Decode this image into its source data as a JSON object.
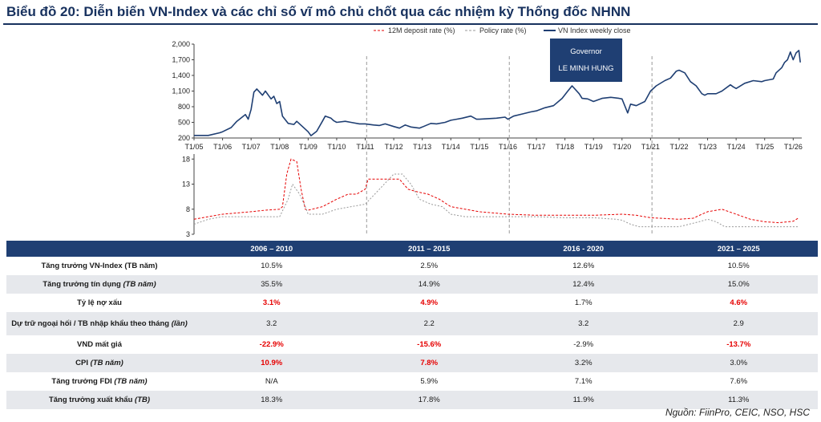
{
  "title": "Biểu đồ 20: Diễn biến VN-Index và các chỉ số vĩ mô chủ chốt qua các nhiệm kỳ Thống đốc NHNN",
  "governor": {
    "line1": "Governor",
    "line2": "LE MINH HUNG"
  },
  "legend": {
    "deposit": "12M deposit rate (%)",
    "policy": "Policy rate (%)",
    "vnindex": "VN Index weekly close"
  },
  "colors": {
    "vnindex": "#1f3f73",
    "deposit": "#e60000",
    "policy": "#999999",
    "header": "#1f3f73",
    "title": "#17315e"
  },
  "chart_data": [
    {
      "type": "line",
      "series": [
        {
          "name": "VN Index weekly close",
          "x": [
            2005.0,
            2005.5,
            2005.9,
            2006.0,
            2006.3,
            2006.5,
            2006.8,
            2006.9,
            2007.0,
            2007.1,
            2007.2,
            2007.4,
            2007.5,
            2007.7,
            2007.8,
            2007.9,
            2008.0,
            2008.1,
            2008.3,
            2008.5,
            2008.6,
            2008.8,
            2009.0,
            2009.1,
            2009.3,
            2009.5,
            2009.6,
            2009.8,
            2009.9,
            2010.0,
            2010.3,
            2010.5,
            2010.8,
            2011.0,
            2011.3,
            2011.5,
            2011.7,
            2012.0,
            2012.2,
            2012.4,
            2012.6,
            2012.9,
            2013.0,
            2013.3,
            2013.5,
            2013.8,
            2014.0,
            2014.2,
            2014.4,
            2014.7,
            2014.9,
            2015.0,
            2015.3,
            2015.6,
            2015.9,
            2016.0,
            2016.2,
            2016.5,
            2016.8,
            2017.0,
            2017.3,
            2017.6,
            2017.9,
            2018.1,
            2018.25,
            2018.5,
            2018.6,
            2018.8,
            2019.0,
            2019.3,
            2019.6,
            2019.9,
            2020.0,
            2020.2,
            2020.3,
            2020.5,
            2020.8,
            2021.0,
            2021.2,
            2021.5,
            2021.7,
            2021.9,
            2022.0,
            2022.2,
            2022.4,
            2022.6,
            2022.8,
            2022.9,
            2023.0,
            2023.3,
            2023.5,
            2023.8,
            2023.9,
            2024.0,
            2024.3,
            2024.6,
            2024.9,
            2025.0,
            2025.3,
            2025.4,
            2025.6,
            2025.7,
            2025.8,
            2025.9,
            2026.0,
            2026.1,
            2026.2,
            2026.25
          ],
          "values": [
            250,
            250,
            300,
            320,
            400,
            520,
            650,
            560,
            750,
            1080,
            1140,
            1020,
            1100,
            950,
            1000,
            860,
            900,
            620,
            480,
            460,
            520,
            420,
            320,
            245,
            330,
            520,
            620,
            580,
            530,
            500,
            520,
            500,
            470,
            470,
            450,
            440,
            470,
            420,
            390,
            450,
            410,
            390,
            410,
            480,
            470,
            500,
            540,
            560,
            580,
            620,
            560,
            560,
            570,
            580,
            600,
            560,
            620,
            660,
            700,
            720,
            780,
            820,
            960,
            1100,
            1200,
            1050,
            960,
            950,
            900,
            960,
            980,
            960,
            950,
            680,
            850,
            820,
            900,
            1100,
            1200,
            1300,
            1350,
            1480,
            1500,
            1450,
            1280,
            1200,
            1050,
            1020,
            1050,
            1050,
            1100,
            1220,
            1180,
            1150,
            1250,
            1300,
            1280,
            1300,
            1330,
            1450,
            1550,
            1650,
            1700,
            1850,
            1700,
            1830,
            1880,
            1650
          ]
        }
      ],
      "xlabels": [
        "T1/05",
        "T1/06",
        "T1/07",
        "T1/08",
        "T1/09",
        "T1/10",
        "T1/11",
        "T1/12",
        "T1/13",
        "T1/14",
        "T1/15",
        "T1/16",
        "T1/17",
        "T1/18",
        "T1/19",
        "T1/20",
        "T1/21",
        "T1/22",
        "T1/23",
        "T1/24",
        "T1/25",
        "T1/26"
      ],
      "yticks": [
        200,
        500,
        800,
        1100,
        1400,
        1700,
        2000
      ],
      "ylim": [
        200,
        2000
      ],
      "xlim": [
        2005,
        2026.3
      ],
      "dividers": [
        2011.05,
        2016.05,
        2021.05
      ]
    },
    {
      "type": "line",
      "series": [
        {
          "name": "12M deposit rate (%)",
          "x": [
            2005.0,
            2005.5,
            2006.0,
            2007.0,
            2007.5,
            2008.0,
            2008.1,
            2008.25,
            2008.4,
            2008.6,
            2008.75,
            2008.9,
            2009.0,
            2009.5,
            2010.0,
            2010.4,
            2010.7,
            2011.0,
            2011.1,
            2011.5,
            2012.0,
            2012.2,
            2012.5,
            2012.8,
            2013.2,
            2013.6,
            2014.0,
            2014.5,
            2015.0,
            2016.0,
            2017.0,
            2018.0,
            2019.0,
            2020.0,
            2020.5,
            2021.0,
            2022.0,
            2022.5,
            2022.8,
            2023.0,
            2023.5,
            2024.0,
            2024.5,
            2025.0,
            2025.5,
            2026.0,
            2026.2
          ],
          "values": [
            6.0,
            6.5,
            7.0,
            7.5,
            7.8,
            8.0,
            8.5,
            15.0,
            18.0,
            17.5,
            12.0,
            8.0,
            7.8,
            8.5,
            10.0,
            11.0,
            11.0,
            12.0,
            14.0,
            14.0,
            14.0,
            14.0,
            12.0,
            11.5,
            11.0,
            10.0,
            8.5,
            8.0,
            7.5,
            7.0,
            6.8,
            6.8,
            6.8,
            7.0,
            6.8,
            6.3,
            6.0,
            6.2,
            7.0,
            7.5,
            8.0,
            7.0,
            6.0,
            5.5,
            5.3,
            5.6,
            6.3
          ]
        },
        {
          "name": "Policy rate (%)",
          "x": [
            2005.0,
            2005.5,
            2006.0,
            2007.0,
            2008.0,
            2008.3,
            2008.45,
            2008.7,
            2008.9,
            2009.0,
            2009.5,
            2010.0,
            2011.0,
            2011.5,
            2012.0,
            2012.3,
            2012.6,
            2012.9,
            2013.3,
            2013.7,
            2014.0,
            2014.5,
            2015.0,
            2016.0,
            2017.0,
            2018.0,
            2019.0,
            2019.8,
            2020.0,
            2020.3,
            2020.6,
            2021.0,
            2022.0,
            2022.7,
            2023.0,
            2023.3,
            2023.6,
            2024.0,
            2025.0,
            2026.0,
            2026.2
          ],
          "values": [
            5.0,
            6.0,
            6.5,
            6.5,
            6.5,
            10.0,
            13.0,
            11.0,
            8.5,
            7.0,
            7.0,
            8.0,
            9.0,
            12.0,
            15.0,
            15.0,
            13.0,
            10.0,
            9.0,
            8.5,
            7.0,
            6.5,
            6.5,
            6.5,
            6.5,
            6.3,
            6.3,
            6.0,
            5.8,
            5.0,
            4.5,
            4.5,
            4.5,
            5.5,
            6.0,
            5.5,
            4.5,
            4.5,
            4.5,
            4.5,
            4.5
          ]
        }
      ],
      "yticks": [
        3,
        8,
        13,
        18
      ],
      "ylim": [
        3,
        19
      ],
      "xlim": [
        2005,
        2026.3
      ]
    },
    {
      "type": "table",
      "headers": [
        "",
        "2006 – 2010",
        "2011 – 2015",
        "2016 - 2020",
        "2021 – 2025"
      ],
      "rows": [
        {
          "label": "Tăng trưởng VN-Index (TB năm)",
          "label_main": "Tăng trưởng VN-Index (TB năm)",
          "label_em": "",
          "values": [
            "10.5%",
            "2.5%",
            "12.6%",
            "10.5%"
          ],
          "red": [
            false,
            false,
            false,
            false
          ]
        },
        {
          "label": "Tăng trưởng tín dụng (TB năm)",
          "label_main": "Tăng trưởng tín dụng ",
          "label_em": "(TB năm)",
          "values": [
            "35.5%",
            "14.9%",
            "12.4%",
            "15.0%"
          ],
          "red": [
            false,
            false,
            false,
            false
          ]
        },
        {
          "label": "Tỷ lệ nợ xấu",
          "label_main": "Tỷ lệ nợ xấu",
          "label_em": "",
          "values": [
            "3.1%",
            "4.9%",
            "1.7%",
            "4.6%"
          ],
          "red": [
            true,
            true,
            false,
            true
          ]
        },
        {
          "label": "Dự trữ ngoại hối / TB nhập khẩu theo tháng (lần)",
          "label_main": "Dự trữ ngoại hối / TB nhập khẩu theo tháng ",
          "label_em": "(lần)",
          "values": [
            "3.2",
            "2.2",
            "3.2",
            "2.9"
          ],
          "red": [
            false,
            false,
            false,
            false
          ]
        },
        {
          "label": "VND mất giá",
          "label_main": "VND mất giá",
          "label_em": "",
          "values": [
            "-22.9%",
            "-15.6%",
            "-2.9%",
            "-13.7%"
          ],
          "red": [
            true,
            true,
            false,
            true
          ]
        },
        {
          "label": "CPI (TB năm)",
          "label_main": "CPI ",
          "label_em": "(TB năm)",
          "values": [
            "10.9%",
            "7.8%",
            "3.2%",
            "3.0%"
          ],
          "red": [
            true,
            true,
            false,
            false
          ]
        },
        {
          "label": "Tăng trưởng FDI (TB năm)",
          "label_main": "Tăng trưởng FDI ",
          "label_em": "(TB năm)",
          "values": [
            "N/A",
            "5.9%",
            "7.1%",
            "7.6%"
          ],
          "red": [
            false,
            false,
            false,
            false
          ]
        },
        {
          "label": "Tăng trưởng xuất khẩu (TB)",
          "label_main": "Tăng trưởng xuất khẩu ",
          "label_em": "(TB)",
          "values": [
            "18.3%",
            "17.8%",
            "11.9%",
            "11.3%"
          ],
          "red": [
            false,
            false,
            false,
            false
          ]
        }
      ]
    }
  ],
  "source": "Nguồn: FiinPro, CEIC, NSO, HSC"
}
